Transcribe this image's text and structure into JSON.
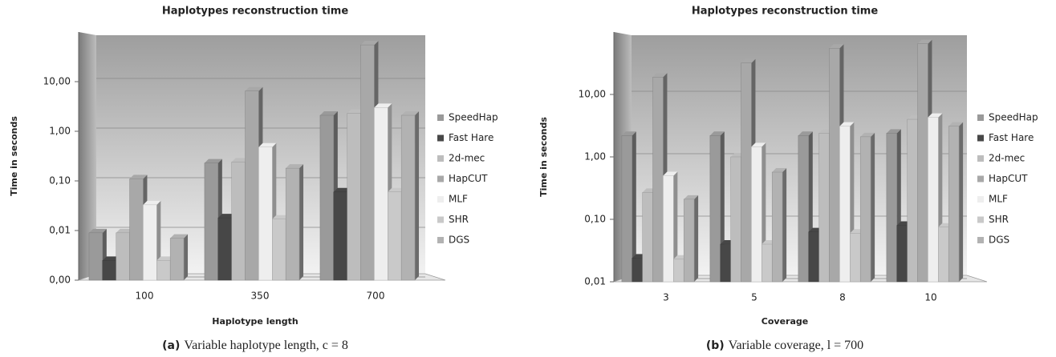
{
  "chart_data": [
    {
      "type": "bar",
      "title": "Haplotypes reconstruction time",
      "y_label": "Time in seconds",
      "x_label": "Haplotype length",
      "categories": [
        "100",
        "350",
        "700"
      ],
      "series": [
        {
          "name": "SpeedHap",
          "color": "#9a9a9a",
          "values": [
            0.009,
            0.23,
            2.1
          ]
        },
        {
          "name": "Fast Hare",
          "color": "#474747",
          "values": [
            0.0025,
            0.018,
            0.06
          ]
        },
        {
          "name": "2d-mec",
          "color": "#bdbdbd",
          "values": [
            0.009,
            0.24,
            2.3
          ]
        },
        {
          "name": "HapCUT",
          "color": "#a8a8a8",
          "values": [
            0.11,
            6.5,
            55
          ]
        },
        {
          "name": "MLF",
          "color": "#eeeeee",
          "values": [
            0.033,
            0.48,
            3.0
          ]
        },
        {
          "name": "SHR",
          "color": "#c9c9c9",
          "values": [
            0.0025,
            0.017,
            0.06
          ]
        },
        {
          "name": "DGS",
          "color": "#b2b2b2",
          "values": [
            0.007,
            0.18,
            2.1
          ]
        }
      ],
      "log_scale": true,
      "ylim": [
        0.001,
        100
      ],
      "yticks": [
        {
          "value": 0.001,
          "label": "0,00"
        },
        {
          "value": 0.01,
          "label": "0,01"
        },
        {
          "value": 0.1,
          "label": "0,10"
        },
        {
          "value": 1,
          "label": "1,00"
        },
        {
          "value": 10,
          "label": "10,00"
        }
      ],
      "grid": true,
      "legend": "right",
      "caption_label": "(a)",
      "caption": "Variable haplotype length, c = 8"
    },
    {
      "type": "bar",
      "title": "Haplotypes reconstruction time",
      "y_label": "Time in seconds",
      "x_label": "Coverage",
      "categories": [
        "3",
        "5",
        "8",
        "10"
      ],
      "series": [
        {
          "name": "SpeedHap",
          "color": "#9a9a9a",
          "values": [
            2.2,
            2.2,
            2.2,
            2.4
          ]
        },
        {
          "name": "Fast Hare",
          "color": "#474747",
          "values": [
            0.024,
            0.04,
            0.063,
            0.08
          ]
        },
        {
          "name": "2d-mec",
          "color": "#bdbdbd",
          "values": [
            0.27,
            1.0,
            2.4,
            4.0
          ]
        },
        {
          "name": "HapCUT",
          "color": "#a8a8a8",
          "values": [
            19,
            32,
            55,
            65
          ]
        },
        {
          "name": "MLF",
          "color": "#eeeeee",
          "values": [
            0.5,
            1.45,
            3.1,
            4.3
          ]
        },
        {
          "name": "SHR",
          "color": "#c9c9c9",
          "values": [
            0.023,
            0.04,
            0.06,
            0.075
          ]
        },
        {
          "name": "DGS",
          "color": "#b2b2b2",
          "values": [
            0.21,
            0.57,
            2.1,
            3.1
          ]
        }
      ],
      "log_scale": true,
      "ylim": [
        0.01,
        100
      ],
      "yticks": [
        {
          "value": 0.01,
          "label": "0,01"
        },
        {
          "value": 0.1,
          "label": "0,10"
        },
        {
          "value": 1,
          "label": "1,00"
        },
        {
          "value": 10,
          "label": "10,00"
        }
      ],
      "grid": true,
      "legend": "right",
      "caption_label": "(b)",
      "caption": "Variable coverage, l = 700"
    }
  ]
}
